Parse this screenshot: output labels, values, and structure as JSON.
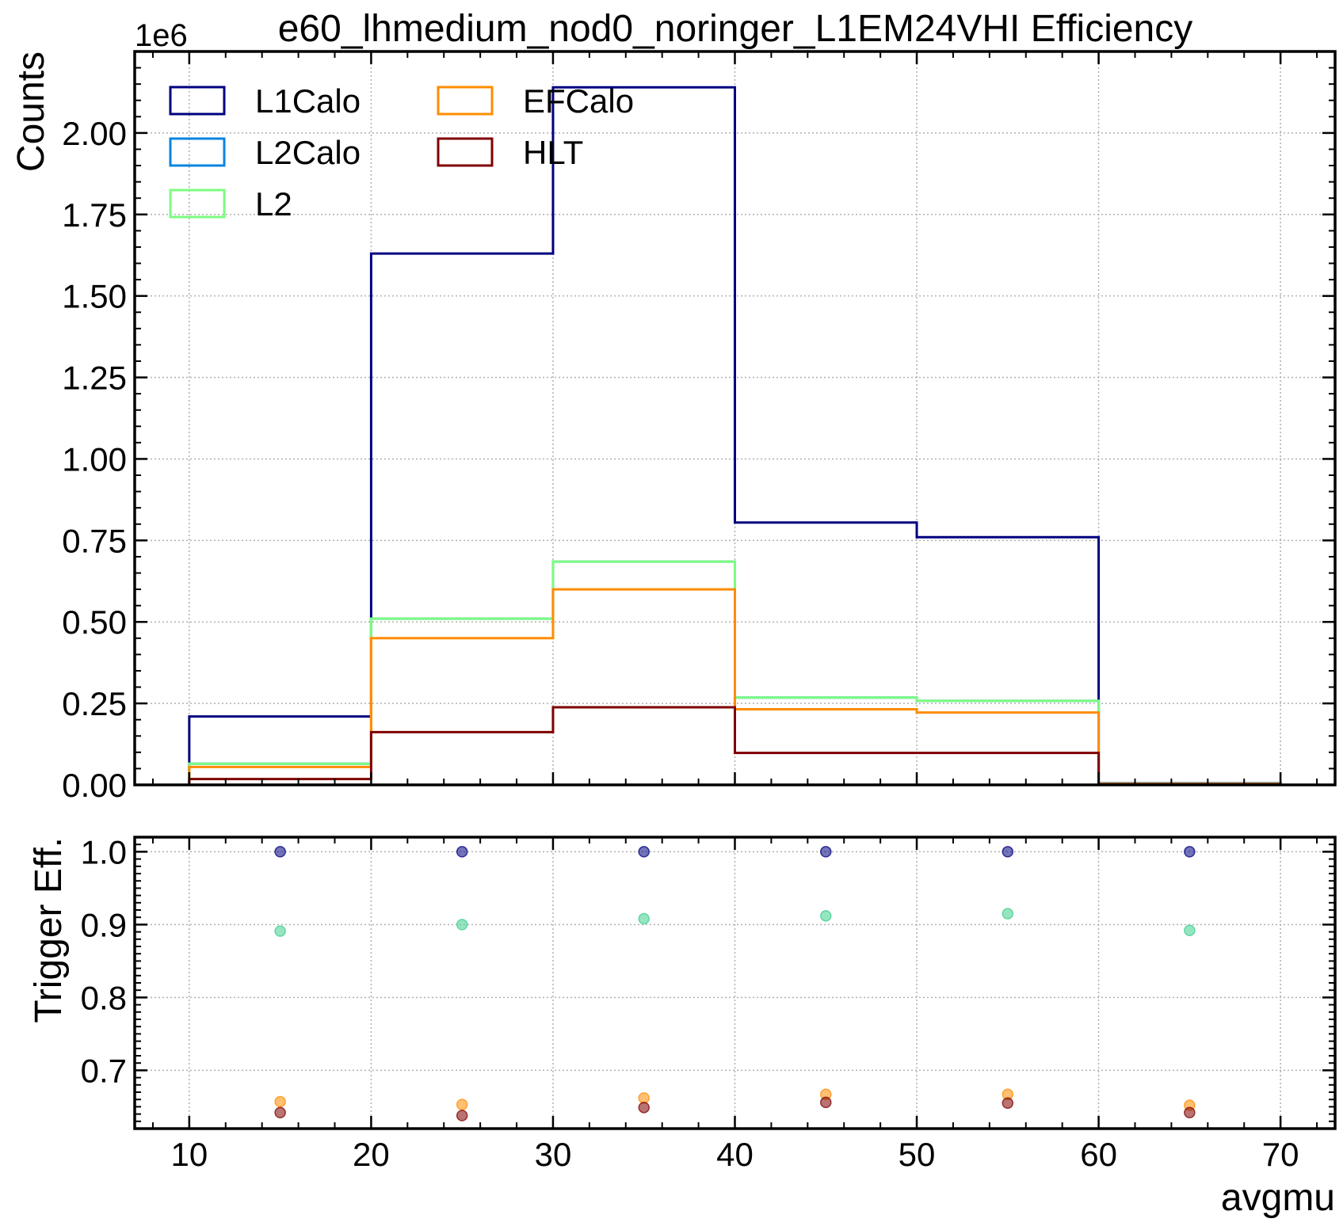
{
  "chart_data": [
    {
      "type": "step-histogram",
      "title": "e60_lhmedium_nod0_noringer_L1EM24VHI Efficiency",
      "ylabel": "Counts",
      "y_offset_label": "1e6",
      "xlim": [
        7,
        73
      ],
      "ylim": [
        0,
        2.25
      ],
      "y_scale": 1000000,
      "yticks": [
        0.0,
        0.25,
        0.5,
        0.75,
        1.0,
        1.25,
        1.5,
        1.75,
        2.0
      ],
      "ytick_labels": [
        "0.00",
        "0.25",
        "0.50",
        "0.75",
        "1.00",
        "1.25",
        "1.50",
        "1.75",
        "2.00"
      ],
      "grid": true,
      "legend_position": "top-left",
      "bin_edges": [
        10,
        20,
        30,
        40,
        50,
        60,
        70
      ],
      "series": [
        {
          "name": "L1Calo",
          "color": "#000080",
          "values": [
            0.21,
            1.63,
            2.14,
            0.805,
            0.76,
            0.005
          ]
        },
        {
          "name": "L2Calo",
          "color": "#0a84e0",
          "values": [
            0.065,
            0.51,
            0.685,
            0.268,
            0.258,
            0.004
          ]
        },
        {
          "name": "L2",
          "color": "#7cfc80",
          "values": [
            0.065,
            0.51,
            0.685,
            0.268,
            0.258,
            0.004
          ]
        },
        {
          "name": "EFCalo",
          "color": "#ff8c00",
          "values": [
            0.055,
            0.45,
            0.6,
            0.232,
            0.222,
            0.003
          ]
        },
        {
          "name": "HLT",
          "color": "#800000",
          "values": [
            0.018,
            0.162,
            0.238,
            0.098,
            0.098,
            0.002
          ]
        }
      ]
    },
    {
      "type": "scatter",
      "ylabel": "Trigger Eff.",
      "xlabel": "avgmu",
      "xlim": [
        7,
        73
      ],
      "ylim": [
        0.62,
        1.02
      ],
      "xticks": [
        10,
        20,
        30,
        40,
        50,
        60,
        70
      ],
      "xtick_labels": [
        "10",
        "20",
        "30",
        "40",
        "50",
        "60",
        "70"
      ],
      "yticks": [
        0.7,
        0.8,
        0.9,
        1.0
      ],
      "ytick_labels": [
        "0.7",
        "0.8",
        "0.9",
        "1.0"
      ],
      "grid": true,
      "x": [
        15,
        25,
        35,
        45,
        55,
        65
      ],
      "series": [
        {
          "color": "#000080",
          "values": [
            1.0,
            1.0,
            1.0,
            1.0,
            1.0,
            1.0
          ]
        },
        {
          "color": "#3fcf8e",
          "values": [
            0.891,
            0.9,
            0.908,
            0.912,
            0.915,
            0.892
          ]
        },
        {
          "color": "#ff8c00",
          "values": [
            0.657,
            0.653,
            0.662,
            0.667,
            0.667,
            0.652
          ]
        },
        {
          "color": "#800000",
          "values": [
            0.642,
            0.638,
            0.649,
            0.656,
            0.655,
            0.642
          ]
        }
      ]
    }
  ]
}
